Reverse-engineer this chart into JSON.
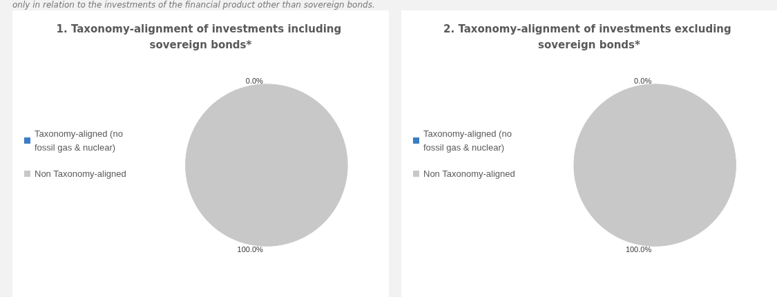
{
  "chart_data": [
    {
      "type": "pie",
      "title": "1. Taxonomy-alignment of investments including sovereign bonds*",
      "annotations": [
        "only in relation to the investments of the financial product other than sovereign bonds."
      ],
      "categories": [
        "Taxonomy-aligned (no fossil gas & nuclear)",
        "Non Taxonomy-aligned"
      ],
      "values": [
        0,
        100
      ],
      "colors": [
        "#3b7dc4",
        "#c8c8c8"
      ],
      "value_labels": [
        "0.0%",
        "100.0%"
      ],
      "legend": "left"
    },
    {
      "type": "pie",
      "title": "2. Taxonomy-alignment of investments excluding sovereign bonds*",
      "categories": [
        "Taxonomy-aligned (no fossil gas & nuclear)",
        "Non Taxonomy-aligned"
      ],
      "values": [
        0,
        100
      ],
      "colors": [
        "#3b7dc4",
        "#c8c8c8"
      ],
      "value_labels": [
        "0.0%",
        "100.0%"
      ],
      "legend": "left"
    }
  ]
}
